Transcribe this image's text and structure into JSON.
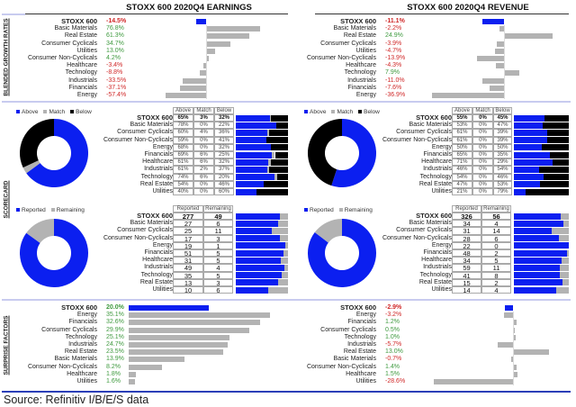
{
  "colors": {
    "accent": "#0b1ff0",
    "gray": "#b3b3b3",
    "black": "#000000",
    "positive": "#3f9a3f",
    "negative": "#d02828"
  },
  "sections": {
    "growth": "BLENDED GROWTH RATES",
    "scorecard": "SCORECARD",
    "surprise": "SURPRISE FACTORS"
  },
  "earnings": {
    "title": "STOXX 600 2020Q4 EARNINGS",
    "growth": [
      [
        "STOXX 600",
        "-14.5%"
      ],
      [
        "Basic Materials",
        "76.8%"
      ],
      [
        "Real Estate",
        "61.3%"
      ],
      [
        "Consumer Cyclicals",
        "34.7%"
      ],
      [
        "Utilities",
        "13.0%"
      ],
      [
        "Consumer Non-Cyclicals",
        "4.2%"
      ],
      [
        "Healthcare",
        "-3.4%"
      ],
      [
        "Technology",
        "-8.8%"
      ],
      [
        "Industrials",
        "-33.5%"
      ],
      [
        "Financials",
        "-37.1%"
      ],
      [
        "Energy",
        "-57.4%"
      ]
    ],
    "beat_legend": [
      "Above",
      "Match",
      "Below"
    ],
    "beat_headers": [
      "Above",
      "Match",
      "Below"
    ],
    "beat": [
      [
        "STOXX 600",
        "65%",
        "3%",
        "32%"
      ],
      [
        "Basic Materials",
        "78%",
        "0%",
        "22%"
      ],
      [
        "Consumer Cyclicals",
        "60%",
        "4%",
        "36%"
      ],
      [
        "Consumer Non-Cyclicals",
        "59%",
        "0%",
        "41%"
      ],
      [
        "Energy",
        "68%",
        "0%",
        "32%"
      ],
      [
        "Financials",
        "69%",
        "6%",
        "25%"
      ],
      [
        "Healthcare",
        "61%",
        "6%",
        "32%"
      ],
      [
        "Industrials",
        "61%",
        "2%",
        "37%"
      ],
      [
        "Technology",
        "74%",
        "6%",
        "20%"
      ],
      [
        "Real Estate",
        "54%",
        "0%",
        "46%"
      ],
      [
        "Utilities",
        "40%",
        "0%",
        "60%"
      ]
    ],
    "report_legend": [
      "Reported",
      "Remaining"
    ],
    "report_headers": [
      "Reported",
      "Remaining"
    ],
    "report": [
      [
        "STOXX 600",
        "277",
        "49"
      ],
      [
        "Basic Materials",
        "27",
        "6"
      ],
      [
        "Consumer Cyclicals",
        "25",
        "11"
      ],
      [
        "Consumer Non-Cyclicals",
        "17",
        "3"
      ],
      [
        "Energy",
        "19",
        "1"
      ],
      [
        "Financials",
        "51",
        "5"
      ],
      [
        "Healthcare",
        "31",
        "5"
      ],
      [
        "Industrials",
        "49",
        "4"
      ],
      [
        "Technology",
        "35",
        "5"
      ],
      [
        "Real Estate",
        "13",
        "3"
      ],
      [
        "Utilities",
        "10",
        "6"
      ]
    ],
    "surprise": [
      [
        "STOXX 600",
        "20.0%"
      ],
      [
        "Energy",
        "35.1%"
      ],
      [
        "Financials",
        "32.6%"
      ],
      [
        "Consumer Cyclicals",
        "29.9%"
      ],
      [
        "Technology",
        "25.1%"
      ],
      [
        "Industrials",
        "24.7%"
      ],
      [
        "Real Estate",
        "23.5%"
      ],
      [
        "Basic Materials",
        "13.9%"
      ],
      [
        "Consumer Non-Cyclicals",
        "8.2%"
      ],
      [
        "Healthcare",
        "1.8%"
      ],
      [
        "Utilities",
        "1.6%"
      ]
    ]
  },
  "revenue": {
    "title": "STOXX 600 2020Q4 REVENUE",
    "growth": [
      [
        "STOXX 600",
        "-11.1%"
      ],
      [
        "Basic Materials",
        "-2.2%"
      ],
      [
        "Real Estate",
        "24.9%"
      ],
      [
        "Consumer Cyclicals",
        "-3.9%"
      ],
      [
        "Utilities",
        "-4.7%"
      ],
      [
        "Consumer Non-Cyclicals",
        "-13.9%"
      ],
      [
        "Healthcare",
        "-4.3%"
      ],
      [
        "Technology",
        "7.9%"
      ],
      [
        "Industrials",
        "-11.0%"
      ],
      [
        "Financials",
        "-7.6%"
      ],
      [
        "Energy",
        "-36.9%"
      ]
    ],
    "beat_legend": [
      "Above",
      "Match",
      "Below"
    ],
    "beat_headers": [
      "Above",
      "Match",
      "Below"
    ],
    "beat": [
      [
        "STOXX 600",
        "55%",
        "0%",
        "45%"
      ],
      [
        "Basic Materials",
        "53%",
        "0%",
        "47%"
      ],
      [
        "Consumer Cyclicals",
        "61%",
        "0%",
        "39%"
      ],
      [
        "Consumer Non-Cyclicals",
        "61%",
        "0%",
        "39%"
      ],
      [
        "Energy",
        "50%",
        "0%",
        "50%"
      ],
      [
        "Financials",
        "65%",
        "0%",
        "35%"
      ],
      [
        "Healthcare",
        "71%",
        "0%",
        "29%"
      ],
      [
        "Industrials",
        "46%",
        "0%",
        "54%"
      ],
      [
        "Technology",
        "54%",
        "0%",
        "46%"
      ],
      [
        "Real Estate",
        "47%",
        "0%",
        "53%"
      ],
      [
        "Utilities",
        "21%",
        "0%",
        "79%"
      ]
    ],
    "report_legend": [
      "Reported",
      "Remaining"
    ],
    "report_headers": [
      "Reported",
      "Remaining"
    ],
    "report": [
      [
        "STOXX 600",
        "326",
        "56"
      ],
      [
        "Basic Materials",
        "34",
        "4"
      ],
      [
        "Consumer Cyclicals",
        "31",
        "14"
      ],
      [
        "Consumer Non-Cyclicals",
        "28",
        "6"
      ],
      [
        "Energy",
        "22",
        "0"
      ],
      [
        "Financials",
        "48",
        "2"
      ],
      [
        "Healthcare",
        "34",
        "5"
      ],
      [
        "Industrials",
        "59",
        "11"
      ],
      [
        "Technology",
        "41",
        "8"
      ],
      [
        "Real Estate",
        "15",
        "2"
      ],
      [
        "Utilities",
        "14",
        "4"
      ]
    ],
    "surprise": [
      [
        "STOXX 600",
        "-2.9%"
      ],
      [
        "Energy",
        "-3.2%"
      ],
      [
        "Financials",
        "1.2%"
      ],
      [
        "Consumer Cyclicals",
        "0.5%"
      ],
      [
        "Technology",
        "1.0%"
      ],
      [
        "Industrials",
        "-5.7%"
      ],
      [
        "Real Estate",
        "13.0%"
      ],
      [
        "Basic Materials",
        "-0.7%"
      ],
      [
        "Consumer Non-Cyclicals",
        "1.4%"
      ],
      [
        "Healthcare",
        "1.5%"
      ],
      [
        "Utilities",
        "-28.6%"
      ]
    ]
  },
  "source": "Source: Refinitiv I/B/E/S data"
}
